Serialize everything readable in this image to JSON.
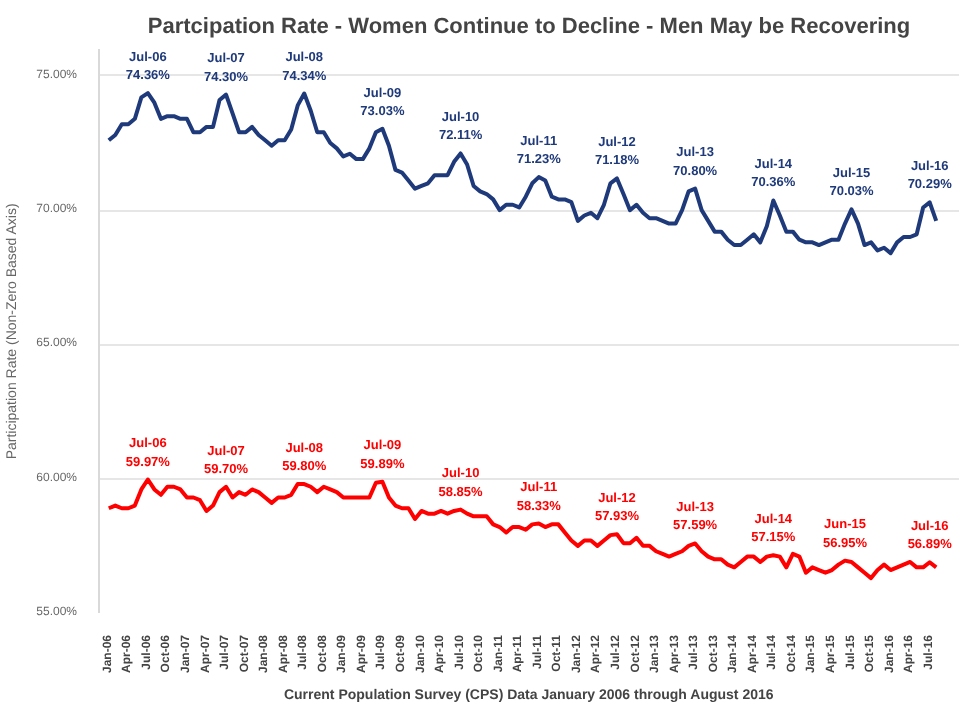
{
  "chart_data": {
    "type": "line",
    "title": "Partcipation Rate - Women Continue to Decline - Men May be Recovering",
    "xlabel": "Current Population Survey (CPS) Data January 2006 through August 2016",
    "ylabel": "Participation Rate (Non-Zero Based Axis)",
    "categories": [
      "Jan-06",
      null,
      null,
      "Apr-06",
      null,
      null,
      "Jul-06",
      null,
      null,
      "Oct-06",
      null,
      null,
      "Jan-07",
      null,
      null,
      "Apr-07",
      null,
      null,
      "Jul-07",
      null,
      null,
      "Oct-07",
      null,
      null,
      "Jan-08",
      null,
      null,
      "Apr-08",
      null,
      null,
      "Jul-08",
      null,
      null,
      "Oct-08",
      null,
      null,
      "Jan-09",
      null,
      null,
      "Apr-09",
      null,
      null,
      "Jul-09",
      null,
      null,
      "Oct-09",
      null,
      null,
      "Jan-10",
      null,
      null,
      "Apr-10",
      null,
      null,
      "Jul-10",
      null,
      null,
      "Oct-10",
      null,
      null,
      "Jan-11",
      null,
      null,
      "Apr-11",
      null,
      null,
      "Jul-11",
      null,
      null,
      "Oct-11",
      null,
      null,
      "Jan-12",
      null,
      null,
      "Apr-12",
      null,
      null,
      "Jul-12",
      null,
      null,
      "Oct-12",
      null,
      null,
      "Jan-13",
      null,
      null,
      "Apr-13",
      null,
      null,
      "Jul-13",
      null,
      null,
      "Oct-13",
      null,
      null,
      "Jan-14",
      null,
      null,
      "Apr-14",
      null,
      null,
      "Jul-14",
      null,
      null,
      "Oct-14",
      null,
      null,
      "Jan-15",
      null,
      null,
      "Apr-15",
      null,
      null,
      "Jul-15",
      null,
      null,
      "Oct-15",
      null,
      null,
      "Jan-16",
      null,
      null,
      "Apr-16",
      null,
      null,
      "Jul-16",
      null
    ],
    "series": [
      {
        "color": "#1f3a7a",
        "values": [
          72.6,
          72.8,
          73.2,
          73.2,
          73.4,
          74.2,
          74.36,
          74.0,
          73.4,
          73.5,
          73.5,
          73.4,
          73.4,
          72.9,
          72.9,
          73.1,
          73.1,
          74.1,
          74.3,
          73.6,
          72.9,
          72.9,
          73.1,
          72.8,
          72.6,
          72.4,
          72.6,
          72.6,
          73.0,
          73.9,
          74.34,
          73.7,
          72.9,
          72.9,
          72.5,
          72.3,
          72.0,
          72.1,
          71.9,
          71.9,
          72.3,
          72.9,
          73.03,
          72.4,
          71.5,
          71.4,
          71.1,
          70.8,
          70.9,
          71.0,
          71.3,
          71.3,
          71.3,
          71.8,
          72.11,
          71.7,
          70.9,
          70.7,
          70.6,
          70.4,
          70.0,
          70.2,
          70.2,
          70.1,
          70.5,
          71.0,
          71.23,
          71.1,
          70.5,
          70.4,
          70.4,
          70.3,
          69.6,
          69.8,
          69.9,
          69.7,
          70.2,
          71.0,
          71.18,
          70.6,
          70.0,
          70.2,
          69.9,
          69.7,
          69.7,
          69.6,
          69.5,
          69.5,
          70.0,
          70.7,
          70.8,
          70.0,
          69.6,
          69.2,
          69.2,
          68.9,
          68.7,
          68.7,
          68.9,
          69.1,
          68.8,
          69.4,
          70.36,
          69.8,
          69.2,
          69.2,
          68.9,
          68.8,
          68.8,
          68.7,
          68.8,
          68.9,
          68.9,
          69.5,
          70.03,
          69.5,
          68.7,
          68.8,
          68.5,
          68.6,
          68.4,
          68.8,
          69.0,
          69.0,
          69.1,
          70.1,
          70.29,
          69.6
        ],
        "value_labels": [
          null,
          null,
          null,
          null,
          null,
          null,
          "Jul-06\n74.36%",
          null,
          null,
          null,
          null,
          null,
          null,
          null,
          null,
          null,
          null,
          null,
          "Jul-07\n74.30%",
          null,
          null,
          null,
          null,
          null,
          null,
          null,
          null,
          null,
          null,
          null,
          "Jul-08\n74.34%",
          null,
          null,
          null,
          null,
          null,
          null,
          null,
          null,
          null,
          null,
          null,
          "Jul-09\n73.03%",
          null,
          null,
          null,
          null,
          null,
          null,
          null,
          null,
          null,
          null,
          null,
          "Jul-10\n72.11%",
          null,
          null,
          null,
          null,
          null,
          null,
          null,
          null,
          null,
          null,
          null,
          "Jul-11\n71.23%",
          null,
          null,
          null,
          null,
          null,
          null,
          null,
          null,
          null,
          null,
          null,
          "Jul-12\n71.18%",
          null,
          null,
          null,
          null,
          null,
          null,
          null,
          null,
          null,
          null,
          null,
          "Jul-13\n70.80%",
          null,
          null,
          null,
          null,
          null,
          null,
          null,
          null,
          null,
          null,
          null,
          "Jul-14\n70.36%",
          null,
          null,
          null,
          null,
          null,
          null,
          null,
          null,
          null,
          null,
          null,
          "Jul-15\n70.03%",
          null,
          null,
          null,
          null,
          null,
          null,
          null,
          null,
          null,
          null,
          null,
          "Jul-16\n70.29%",
          null
        ]
      },
      {
        "color": "#ff0000",
        "values": [
          58.9,
          59.0,
          58.9,
          58.9,
          59.0,
          59.6,
          59.97,
          59.6,
          59.4,
          59.7,
          59.7,
          59.6,
          59.3,
          59.3,
          59.2,
          58.8,
          59.0,
          59.5,
          59.7,
          59.3,
          59.5,
          59.4,
          59.6,
          59.5,
          59.3,
          59.1,
          59.3,
          59.3,
          59.4,
          59.8,
          59.8,
          59.7,
          59.5,
          59.7,
          59.6,
          59.5,
          59.3,
          59.3,
          59.3,
          59.3,
          59.3,
          59.85,
          59.89,
          59.3,
          59.0,
          58.9,
          58.9,
          58.5,
          58.8,
          58.7,
          58.7,
          58.8,
          58.7,
          58.8,
          58.85,
          58.7,
          58.6,
          58.6,
          58.6,
          58.3,
          58.2,
          58.0,
          58.2,
          58.2,
          58.1,
          58.3,
          58.33,
          58.2,
          58.3,
          58.3,
          58.0,
          57.7,
          57.5,
          57.7,
          57.7,
          57.5,
          57.7,
          57.9,
          57.93,
          57.6,
          57.6,
          57.8,
          57.5,
          57.5,
          57.3,
          57.2,
          57.1,
          57.2,
          57.3,
          57.5,
          57.59,
          57.3,
          57.1,
          57.0,
          57.0,
          56.8,
          56.7,
          56.9,
          57.1,
          57.1,
          56.9,
          57.1,
          57.15,
          57.1,
          56.7,
          57.2,
          57.1,
          56.5,
          56.7,
          56.6,
          56.5,
          56.6,
          56.8,
          56.95,
          56.9,
          56.7,
          56.5,
          56.3,
          56.6,
          56.8,
          56.6,
          56.7,
          56.8,
          56.9,
          56.7,
          56.7,
          56.89,
          56.7
        ],
        "value_labels": [
          null,
          null,
          null,
          null,
          null,
          null,
          "Jul-06\n59.97%",
          null,
          null,
          null,
          null,
          null,
          null,
          null,
          null,
          null,
          null,
          null,
          "Jul-07\n59.70%",
          null,
          null,
          null,
          null,
          null,
          null,
          null,
          null,
          null,
          null,
          null,
          "Jul-08\n59.80%",
          null,
          null,
          null,
          null,
          null,
          null,
          null,
          null,
          null,
          null,
          null,
          "Jul-09\n59.89%",
          null,
          null,
          null,
          null,
          null,
          null,
          null,
          null,
          null,
          null,
          null,
          "Jul-10\n58.85%",
          null,
          null,
          null,
          null,
          null,
          null,
          null,
          null,
          null,
          null,
          null,
          "Jul-11\n58.33%",
          null,
          null,
          null,
          null,
          null,
          null,
          null,
          null,
          null,
          null,
          null,
          "Jul-12\n57.93%",
          null,
          null,
          null,
          null,
          null,
          null,
          null,
          null,
          null,
          null,
          null,
          "Jul-13\n57.59%",
          null,
          null,
          null,
          null,
          null,
          null,
          null,
          null,
          null,
          null,
          null,
          "Jul-14\n57.15%",
          null,
          null,
          null,
          null,
          null,
          null,
          null,
          null,
          null,
          null,
          "Jun-15\n56.95%",
          null,
          null,
          null,
          null,
          null,
          null,
          null,
          null,
          null,
          null,
          null,
          null,
          "Jul-16\n56.89%",
          null
        ]
      }
    ],
    "ylim": [
      55,
      76
    ],
    "yticks": [
      {
        "value": 55,
        "label": "55.00%"
      },
      {
        "value": 60,
        "label": "60.00%"
      },
      {
        "value": 65,
        "label": "65.00%"
      },
      {
        "value": 70,
        "label": "70.00%"
      },
      {
        "value": 75,
        "label": "75.00%"
      }
    ],
    "grid": "y",
    "marker": "none",
    "line_style": "solid"
  }
}
